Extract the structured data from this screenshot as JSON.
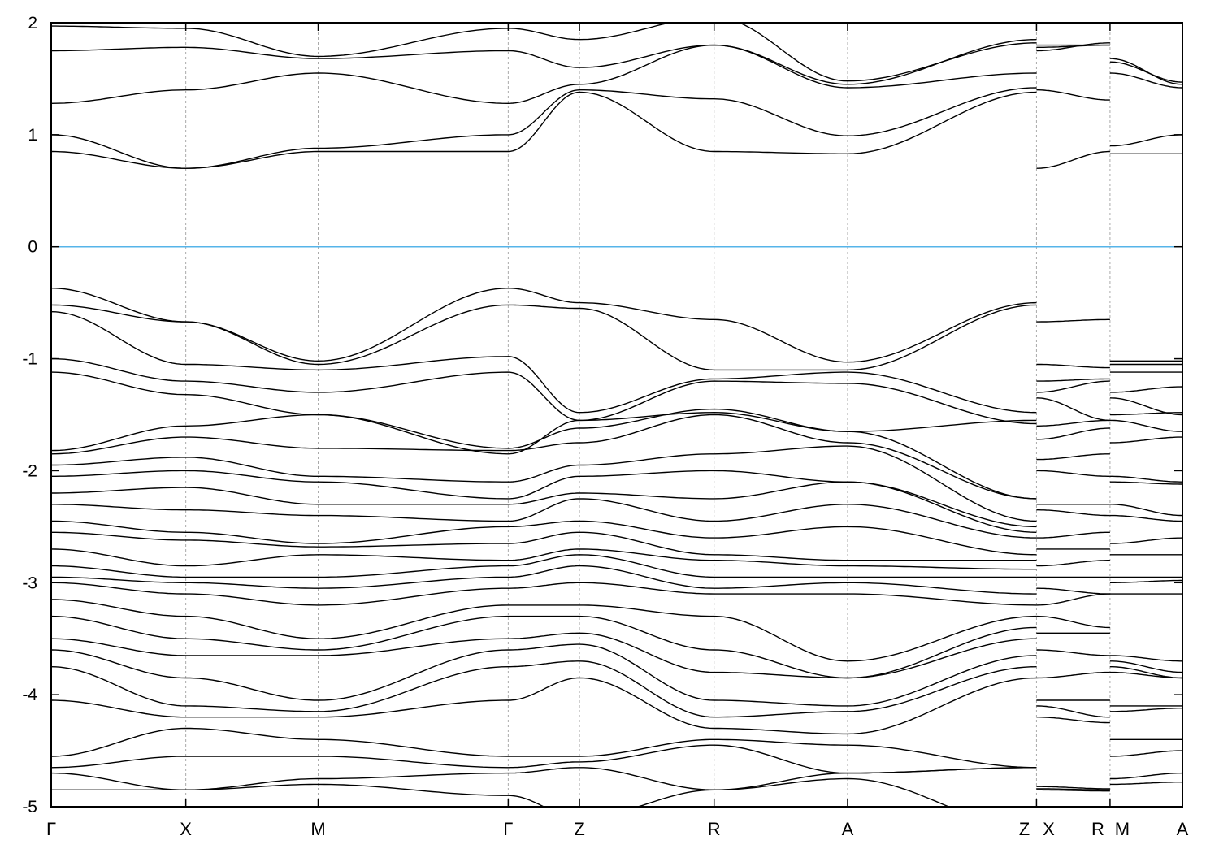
{
  "chart_data": {
    "type": "line",
    "title": "",
    "xlabel": "",
    "ylabel": "",
    "ylim": [
      -5,
      2
    ],
    "yticks": [
      -5,
      -4,
      -3,
      -2,
      -1,
      0,
      1,
      2
    ],
    "ytick_labels": [
      "-5",
      "-4",
      "-3",
      "-2",
      "-1",
      "0",
      "1",
      "2"
    ],
    "grid": "vertical dotted lines at high-symmetry points",
    "fermi_level": 0,
    "colors": {
      "bands": "#000000",
      "fermi_line": "#56b4e9",
      "grid": "#aaaaaa"
    },
    "kpath": {
      "labels": [
        "Γ",
        "X",
        "M",
        "Γ",
        "Z",
        "R",
        "A",
        "Z",
        "X",
        "R",
        "M",
        "A"
      ],
      "k": [
        0,
        0.119,
        0.236,
        0.404,
        0.467,
        0.586,
        0.704,
        0.871,
        0.871,
        0.936,
        0.936,
        1.0
      ],
      "segments": [
        [
          0,
          7
        ],
        [
          8,
          9
        ],
        [
          10,
          11
        ]
      ]
    },
    "bands": [
      [
        1.97,
        1.95,
        1.7,
        1.95,
        1.85,
        2.05,
        1.48,
        1.82,
        1.75,
        1.82,
        1.68,
        1.45
      ],
      [
        1.75,
        1.78,
        1.68,
        1.75,
        1.6,
        1.8,
        1.45,
        1.85,
        1.8,
        1.8,
        1.65,
        1.47
      ],
      [
        1.28,
        1.4,
        1.55,
        1.28,
        1.45,
        1.8,
        1.42,
        1.55,
        1.78,
        1.8,
        1.55,
        1.42
      ],
      [
        1.0,
        0.7,
        0.88,
        1.0,
        1.4,
        1.32,
        0.99,
        1.42,
        1.4,
        1.31,
        0.9,
        1.0
      ],
      [
        0.85,
        0.7,
        0.85,
        0.85,
        1.38,
        0.85,
        0.83,
        1.38,
        0.7,
        0.85,
        0.83,
        0.83
      ],
      [
        -0.37,
        -0.67,
        -1.02,
        -0.37,
        -0.5,
        -0.65,
        -1.03,
        -0.5,
        -0.67,
        -0.65,
        -1.02,
        -1.02
      ],
      [
        -0.52,
        -0.67,
        -1.05,
        -0.52,
        -0.55,
        -1.1,
        -1.1,
        -0.52,
        -1.05,
        -1.08,
        -1.05,
        -1.05
      ],
      [
        -0.58,
        -1.05,
        -1.1,
        -0.98,
        -1.48,
        -1.18,
        -1.12,
        -1.48,
        -1.2,
        -1.18,
        -1.12,
        -1.12
      ],
      [
        -1.0,
        -1.2,
        -1.3,
        -1.12,
        -1.55,
        -1.2,
        -1.22,
        -1.58,
        -1.3,
        -1.2,
        -1.3,
        -1.25
      ],
      [
        -1.12,
        -1.32,
        -1.5,
        -1.8,
        -1.62,
        -1.45,
        -1.65,
        -2.25,
        -1.35,
        -1.55,
        -1.35,
        -1.5
      ],
      [
        -1.82,
        -1.6,
        -1.5,
        -1.85,
        -1.55,
        -1.48,
        -1.65,
        -1.55,
        -1.6,
        -1.55,
        -1.5,
        -1.48
      ],
      [
        -1.85,
        -1.7,
        -1.8,
        -1.82,
        -1.75,
        -1.5,
        -1.75,
        -2.25,
        -1.72,
        -1.62,
        -1.55,
        -1.65
      ],
      [
        -1.95,
        -1.88,
        -2.05,
        -2.1,
        -1.95,
        -1.85,
        -1.78,
        -2.45,
        -1.9,
        -1.85,
        -1.75,
        -1.7
      ],
      [
        -2.05,
        -2.0,
        -2.1,
        -2.25,
        -2.05,
        -2.0,
        -2.1,
        -2.5,
        -2.0,
        -2.05,
        -2.05,
        -2.1
      ],
      [
        -2.2,
        -2.15,
        -2.3,
        -2.3,
        -2.2,
        -2.25,
        -2.1,
        -2.55,
        -2.3,
        -2.3,
        -2.1,
        -2.12
      ],
      [
        -2.3,
        -2.35,
        -2.4,
        -2.45,
        -2.25,
        -2.45,
        -2.3,
        -2.6,
        -2.35,
        -2.4,
        -2.3,
        -2.4
      ],
      [
        -2.45,
        -2.55,
        -2.65,
        -2.5,
        -2.45,
        -2.6,
        -2.5,
        -2.75,
        -2.6,
        -2.55,
        -2.4,
        -2.45
      ],
      [
        -2.55,
        -2.62,
        -2.68,
        -2.65,
        -2.55,
        -2.75,
        -2.8,
        -2.8,
        -2.7,
        -2.7,
        -2.65,
        -2.6
      ],
      [
        -2.7,
        -2.85,
        -2.75,
        -2.8,
        -2.7,
        -2.8,
        -2.85,
        -2.88,
        -2.85,
        -2.8,
        -2.75,
        -2.75
      ],
      [
        -2.85,
        -2.95,
        -2.95,
        -2.85,
        -2.75,
        -2.95,
        -2.95,
        -2.95,
        -2.95,
        -2.95,
        -2.95,
        -2.95
      ],
      [
        -2.95,
        -3.0,
        -3.05,
        -2.95,
        -2.85,
        -3.05,
        -3.0,
        -3.1,
        -3.05,
        -3.1,
        -3.0,
        -2.98
      ],
      [
        -3.0,
        -3.1,
        -3.2,
        -3.05,
        -3.0,
        -3.1,
        -3.1,
        -3.2,
        -3.2,
        -3.1,
        -3.1,
        -3.1
      ],
      [
        -3.15,
        -3.3,
        -3.5,
        -3.2,
        -3.2,
        -3.3,
        -3.7,
        -3.3,
        -3.3,
        -3.4,
        -3.65,
        -3.7
      ],
      [
        -3.3,
        -3.5,
        -3.6,
        -3.3,
        -3.3,
        -3.6,
        -3.85,
        -3.4,
        -3.45,
        -3.45,
        -3.7,
        -3.8
      ],
      [
        -3.5,
        -3.65,
        -3.65,
        -3.5,
        -3.45,
        -3.8,
        -3.85,
        -3.5,
        -3.6,
        -3.65,
        -3.75,
        -3.85
      ],
      [
        -3.6,
        -3.85,
        -4.05,
        -3.6,
        -3.55,
        -4.05,
        -4.1,
        -3.65,
        -3.85,
        -3.8,
        -3.8,
        -3.85
      ],
      [
        -3.75,
        -4.1,
        -4.15,
        -3.75,
        -3.7,
        -4.2,
        -4.15,
        -3.75,
        -4.05,
        -4.05,
        -4.1,
        -4.1
      ],
      [
        -4.05,
        -4.2,
        -4.2,
        -4.05,
        -3.85,
        -4.3,
        -4.35,
        -3.85,
        -4.1,
        -4.2,
        -4.15,
        -4.12
      ],
      [
        -4.55,
        -4.3,
        -4.4,
        -4.55,
        -4.55,
        -4.4,
        -4.45,
        -4.65,
        -4.2,
        -4.25,
        -4.4,
        -4.4
      ],
      [
        -4.65,
        -4.55,
        -4.55,
        -4.65,
        -4.6,
        -4.45,
        -4.7,
        -4.65,
        -4.82,
        -4.84,
        -4.55,
        -4.5
      ],
      [
        -4.7,
        -4.85,
        -4.75,
        -4.7,
        -4.65,
        -4.85,
        -4.7,
        -4.65,
        -4.84,
        -4.85,
        -4.75,
        -4.7
      ],
      [
        -4.85,
        -4.85,
        -4.8,
        -4.9,
        -5.1,
        -4.85,
        -4.75,
        -5.2,
        -4.85,
        -4.86,
        -4.8,
        -4.78
      ]
    ]
  }
}
